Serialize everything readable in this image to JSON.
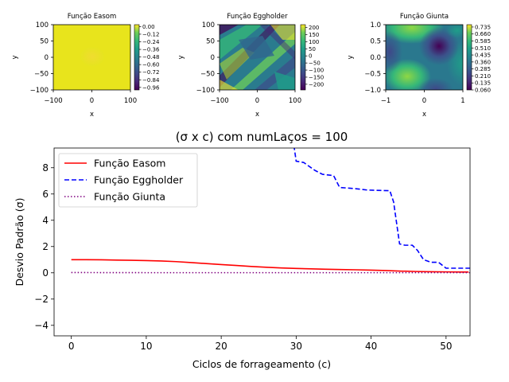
{
  "chart_data": [
    {
      "type": "heatmap",
      "title": "Função Easom",
      "xlabel": "x",
      "ylabel": "y",
      "xlim": [
        -100,
        100
      ],
      "ylim": [
        -100,
        100
      ],
      "xticks": [
        "−100",
        "0",
        "100"
      ],
      "yticks": [
        "100",
        "50",
        "0",
        "−50",
        "−100"
      ],
      "colorbar": {
        "ticks": [
          "0.00",
          "−0.12",
          "−0.24",
          "−0.36",
          "−0.48",
          "−0.60",
          "−0.72",
          "−0.84",
          "−0.96"
        ],
        "range": [
          -1.0,
          0.03
        ],
        "colormap": "viridis"
      }
    },
    {
      "type": "heatmap",
      "title": "Função Eggholder",
      "xlabel": "x",
      "ylabel": "y",
      "xlim": [
        -100,
        100
      ],
      "ylim": [
        -100,
        100
      ],
      "xticks": [
        "−100",
        "0",
        "100"
      ],
      "yticks": [
        "100",
        "50",
        "0",
        "−50",
        "−100"
      ],
      "colorbar": {
        "ticks": [
          "200",
          "150",
          "100",
          "50",
          "0",
          "−50",
          "−100",
          "−150",
          "−200"
        ],
        "range": [
          -240,
          220
        ],
        "colormap": "viridis"
      }
    },
    {
      "type": "heatmap",
      "title": "Função Giunta",
      "xlabel": "x",
      "ylabel": "y",
      "xlim": [
        -1,
        1
      ],
      "ylim": [
        -1,
        1
      ],
      "xticks": [
        "−1",
        "0",
        "1"
      ],
      "yticks": [
        "1.0",
        "0.5",
        "0.0",
        "−0.5",
        "−1.0"
      ],
      "colorbar": {
        "ticks": [
          "0.735",
          "0.660",
          "0.585",
          "0.510",
          "0.435",
          "0.360",
          "0.285",
          "0.210",
          "0.135",
          "0.060"
        ],
        "range": [
          0.06,
          0.76
        ],
        "colormap": "viridis"
      }
    },
    {
      "type": "line",
      "title": "(σ x c) com numLaços = 100",
      "xlabel": "Ciclos de forrageamento (c)",
      "ylabel": "Desvio Padrão (σ)",
      "xlim": [
        -2.3,
        53.2
      ],
      "ylim": [
        -4.8,
        9.5
      ],
      "xticks": [
        0,
        10,
        20,
        30,
        40,
        50
      ],
      "yticks": [
        -4,
        -2,
        0,
        2,
        4,
        6,
        8
      ],
      "legend_position": "upper-left",
      "series": [
        {
          "name": "Função Easom",
          "color": "#ff0000",
          "style": "solid",
          "x": [
            0,
            2,
            4,
            6,
            8,
            10,
            12,
            14,
            16,
            18,
            20,
            22,
            24,
            26,
            28,
            30,
            32,
            34,
            36,
            38,
            40,
            42,
            44,
            46,
            48,
            50,
            52,
            53
          ],
          "y": [
            1.0,
            1.0,
            0.99,
            0.97,
            0.95,
            0.93,
            0.9,
            0.85,
            0.78,
            0.7,
            0.63,
            0.56,
            0.48,
            0.42,
            0.37,
            0.33,
            0.3,
            0.27,
            0.25,
            0.23,
            0.2,
            0.17,
            0.13,
            0.1,
            0.08,
            0.07,
            0.06,
            0.06
          ]
        },
        {
          "name": "Função Eggholder",
          "color": "#0000ff",
          "style": "dashed",
          "x": [
            29.7,
            30.0,
            31.0,
            32.5,
            33.5,
            35.0,
            35.8,
            38.0,
            39.5,
            42.5,
            43.0,
            43.8,
            44.5,
            45.5,
            46.2,
            47.0,
            48.0,
            49.0,
            50.0,
            51.0,
            53.2
          ],
          "y": [
            9.7,
            8.5,
            8.4,
            7.8,
            7.5,
            7.4,
            6.5,
            6.4,
            6.3,
            6.25,
            5.4,
            2.2,
            2.1,
            2.1,
            1.7,
            1.0,
            0.8,
            0.8,
            0.35,
            0.35,
            0.35
          ]
        },
        {
          "name": "Função Giunta",
          "color": "#800080",
          "style": "dotted",
          "x": [
            0,
            10,
            20,
            30,
            40,
            50,
            53.2
          ],
          "y": [
            0.02,
            0.01,
            0.01,
            0.01,
            0.01,
            0.01,
            0.01
          ]
        }
      ]
    }
  ]
}
